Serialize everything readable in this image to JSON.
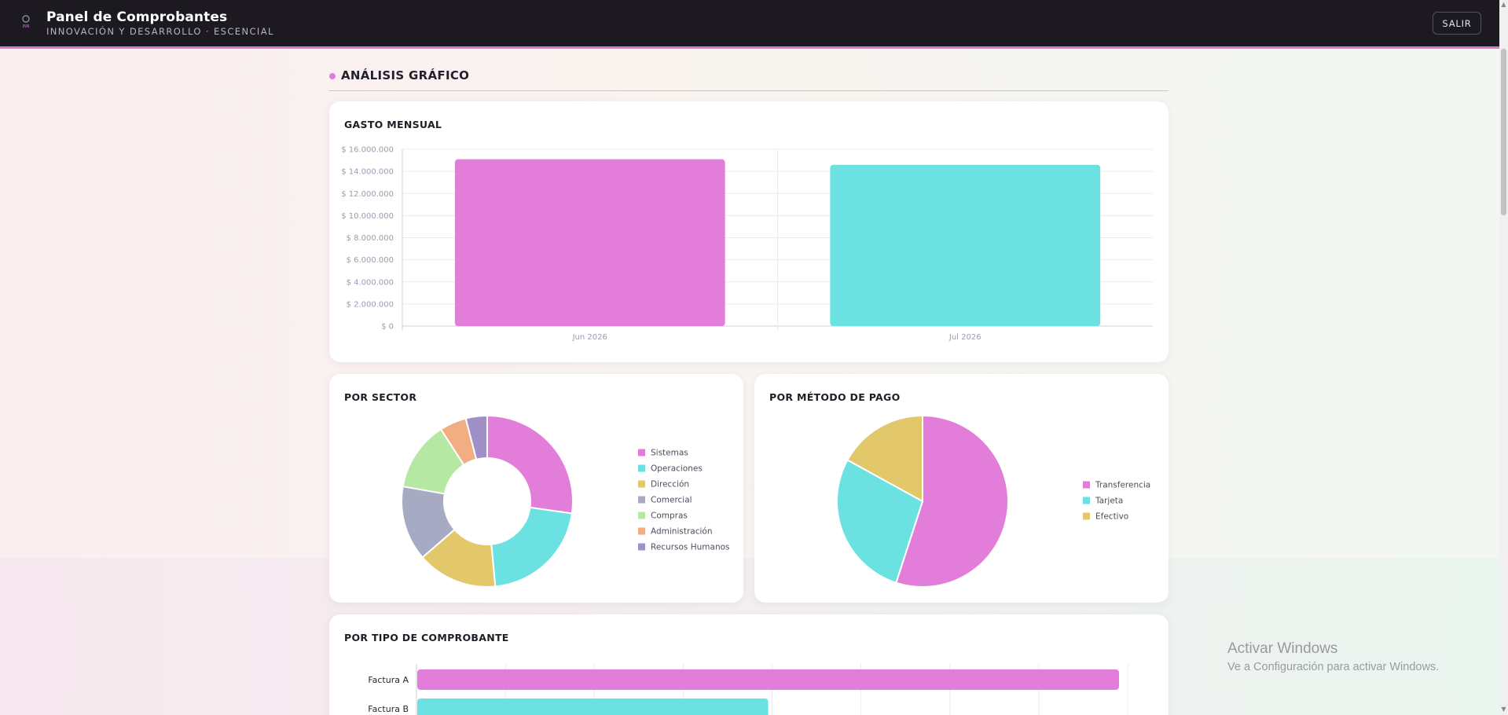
{
  "header": {
    "title": "Panel de Comprobantes",
    "subtitle": "INNOVACIÓN Y DESARROLLO · ESCENCIAL",
    "logo_text": "INN",
    "exit_label": "SALIR"
  },
  "section": {
    "title": "ANÁLISIS GRÁFICO"
  },
  "colors": {
    "accent": "#d675d6",
    "pink": "#e27dd9",
    "cyan": "#6ce1e2",
    "yellow": "#e3c76b",
    "slate": "#a6abc3",
    "green": "#b5e8a3",
    "orange": "#f3ad83",
    "purple": "#a18fc8"
  },
  "charts": {
    "monthly": {
      "title": "GASTO MENSUAL"
    },
    "sector": {
      "title": "POR SECTOR"
    },
    "payment": {
      "title": "POR MÉTODO DE PAGO"
    },
    "type": {
      "title": "POR TIPO DE COMPROBANTE"
    }
  },
  "chart_data": [
    {
      "type": "bar",
      "title": "GASTO MENSUAL",
      "categories": [
        "Jun 2026",
        "Jul 2026"
      ],
      "values": [
        15100000,
        14600000
      ],
      "colors": [
        "#e27dd9",
        "#6ce1e2"
      ],
      "ylim": [
        0,
        16000000
      ],
      "yticks": [
        0,
        2000000,
        4000000,
        6000000,
        8000000,
        10000000,
        12000000,
        14000000,
        16000000
      ],
      "ytick_labels": [
        "$ 0",
        "$ 2.000.000",
        "$ 4.000.000",
        "$ 6.000.000",
        "$ 8.000.000",
        "$ 10.000.000",
        "$ 12.000.000",
        "$ 14.000.000",
        "$ 16.000.000"
      ],
      "grid": true
    },
    {
      "type": "pie",
      "title": "POR SECTOR",
      "donut": true,
      "labels": [
        "Sistemas",
        "Operaciones",
        "Dirección",
        "Comercial",
        "Compras",
        "Administración",
        "Recursos Humanos"
      ],
      "values": [
        27,
        21,
        15,
        14,
        13,
        5,
        4
      ],
      "colors": [
        "#e27dd9",
        "#6ce1e2",
        "#e3c76b",
        "#a6abc3",
        "#b5e8a3",
        "#f3ad83",
        "#a18fc8"
      ],
      "legend": "right"
    },
    {
      "type": "pie",
      "title": "POR MÉTODO DE PAGO",
      "donut": false,
      "labels": [
        "Transferencia",
        "Tarjeta",
        "Efectivo"
      ],
      "values": [
        55,
        28,
        17
      ],
      "colors": [
        "#e27dd9",
        "#6ce1e2",
        "#e3c76b"
      ],
      "legend": "right"
    },
    {
      "type": "bar",
      "orientation": "horizontal",
      "title": "POR TIPO DE COMPROBANTE",
      "categories": [
        "Factura A",
        "Factura B"
      ],
      "values": [
        100,
        50
      ],
      "colors": [
        "#e27dd9",
        "#6ce1e2"
      ],
      "grid": true
    }
  ],
  "watermark": {
    "title": "Activar Windows",
    "subtitle": "Ve a Configuración para activar Windows."
  }
}
